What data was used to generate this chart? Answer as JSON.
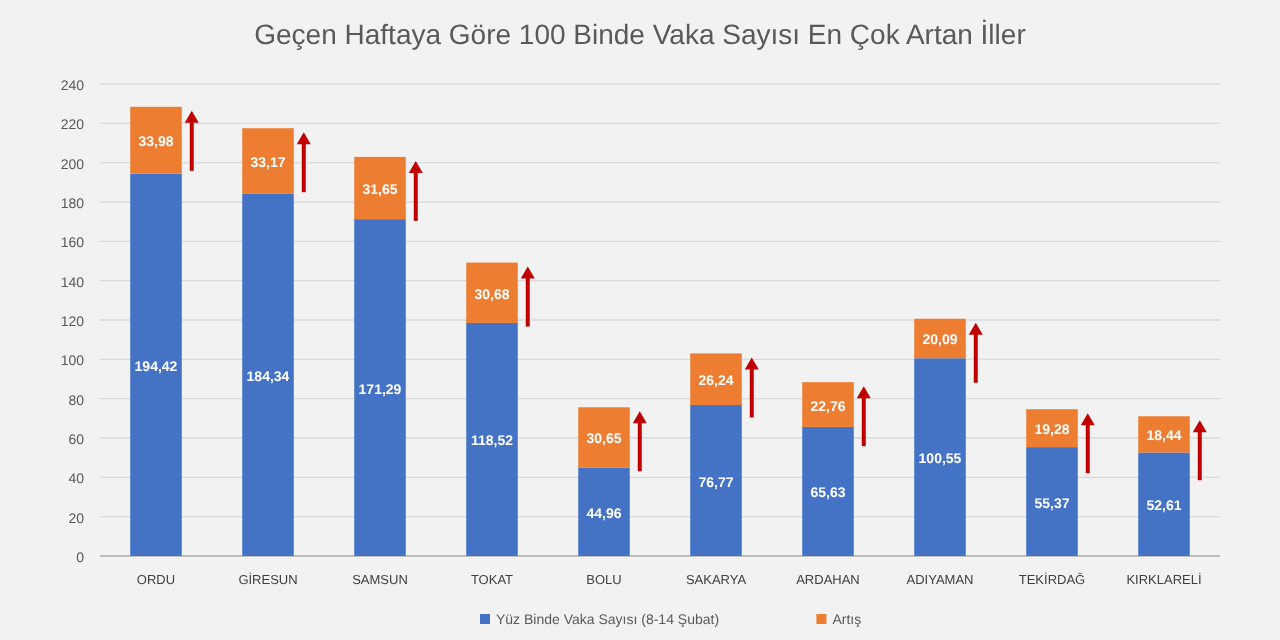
{
  "chart_data": {
    "type": "bar",
    "stacked": true,
    "title": "Geçen Haftaya Göre 100 Binde Vaka Sayısı En Çok Artan İller",
    "categories": [
      "ORDU",
      "GİRESUN",
      "SAMSUN",
      "TOKAT",
      "BOLU",
      "SAKARYA",
      "ARDAHAN",
      "ADIYAMAN",
      "TEKİRDAĞ",
      "KIRKLARELİ"
    ],
    "series": [
      {
        "name": "Yüz Binde Vaka Sayısı (8-14 Şubat)",
        "color": "#4472c4",
        "values": [
          194.42,
          184.34,
          171.29,
          118.52,
          44.96,
          76.77,
          65.63,
          100.55,
          55.37,
          52.61
        ],
        "value_labels": [
          "194,42",
          "184,34",
          "171,29",
          "118,52",
          "44,96",
          "76,77",
          "65,63",
          "100,55",
          "55,37",
          "52,61"
        ]
      },
      {
        "name": "Artış",
        "color": "#ed7d31",
        "values": [
          33.98,
          33.17,
          31.65,
          30.68,
          30.65,
          26.24,
          22.76,
          20.09,
          19.28,
          18.44
        ],
        "value_labels": [
          "33,98",
          "33,17",
          "31,65",
          "30,68",
          "30,65",
          "26,24",
          "22,76",
          "20,09",
          "19,28",
          "18,44"
        ]
      }
    ],
    "ylim": [
      0,
      240
    ],
    "yticks": [
      0,
      20,
      40,
      60,
      80,
      100,
      120,
      140,
      160,
      180,
      200,
      220,
      240
    ],
    "grid": "y",
    "legend": "bottom"
  }
}
